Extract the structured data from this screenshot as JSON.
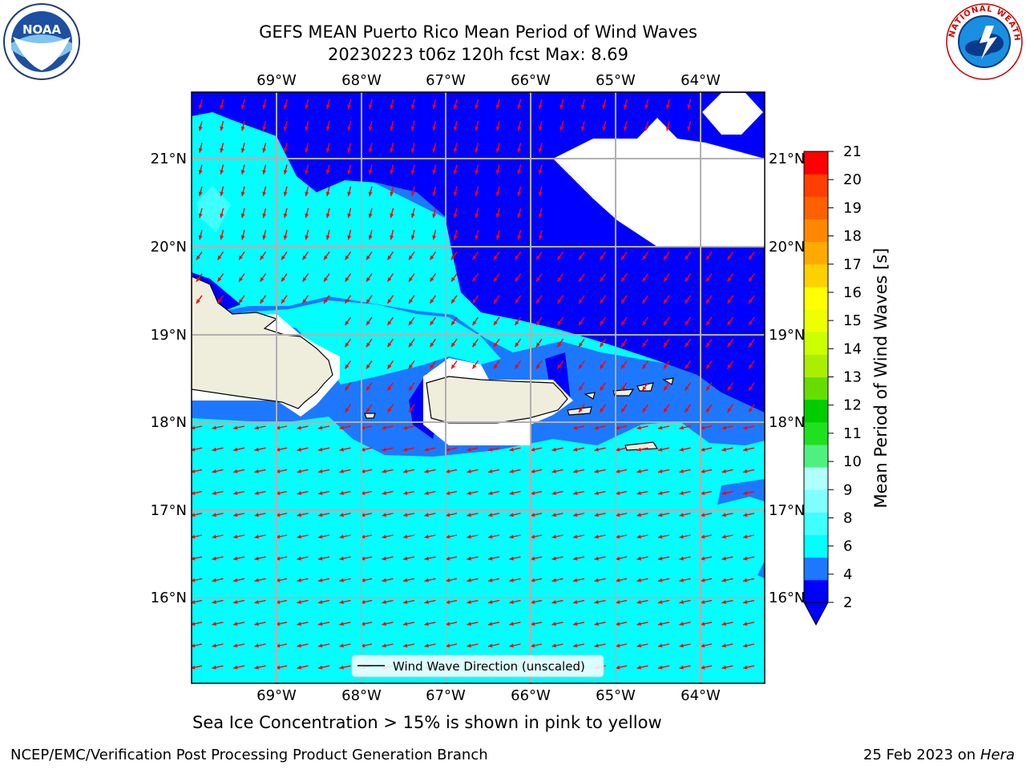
{
  "header": {
    "title_line1": "GEFS MEAN Puerto Rico Mean Period of Wind Waves",
    "title_line2": "20230223 t06z 120h fcst   Max: 8.69"
  },
  "map": {
    "lon_labels": [
      "69°W",
      "68°W",
      "67°W",
      "66°W",
      "65°W",
      "64°W"
    ],
    "lat_labels": [
      "21°N",
      "20°N",
      "19°N",
      "18°N",
      "17°N",
      "16°N"
    ],
    "legend_label": "Wind Wave Direction (unscaled)",
    "land_color": "#efeddc",
    "arrow_color": "#ff0000",
    "grid_color": "#b0b0b0"
  },
  "colorbar": {
    "label": "Mean Period of Wind Waves [s]",
    "ticks": [
      "21",
      "20",
      "19",
      "18",
      "17",
      "16",
      "15",
      "14",
      "13",
      "12",
      "11",
      "10",
      "9",
      "8",
      "6",
      "4",
      "2"
    ],
    "colors": [
      "#0000ff",
      "#1e78ff",
      "#00ffff",
      "#40ffff",
      "#80ffff",
      "#b0ffff",
      "#50f080",
      "#20e020",
      "#00cc00",
      "#66dd00",
      "#aaee00",
      "#ccff00",
      "#eeff00",
      "#ffff00",
      "#ffd000",
      "#ffaa00",
      "#ff8800",
      "#ff6000",
      "#ff4000",
      "#ff0000"
    ]
  },
  "caption": "Sea Ice Concentration > 15% is shown in pink to yellow",
  "footer": {
    "left": "NCEP/EMC/Verification Post Processing Product Generation Branch",
    "date": "25 Feb 2023 on",
    "host": "Hera"
  },
  "logos": {
    "noaa_text": "NOAA",
    "nws_text": "NATIONAL WEATHER SERVICE"
  }
}
